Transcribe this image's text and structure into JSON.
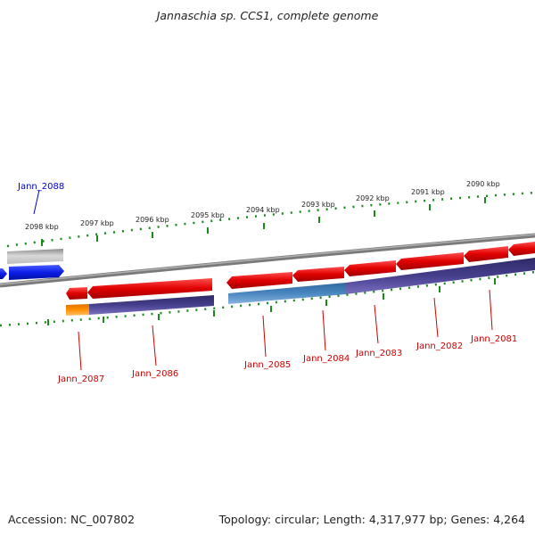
{
  "title": "Jannaschia sp. CCS1, complete genome",
  "footer": {
    "accession": "Accession: NC_007802",
    "topology": "Topology: circular; Length: 4,317,977 bp; Genes: 4,264"
  },
  "ruler_labels": [
    "2098 kbp",
    "2097 kbp",
    "2096 kbp",
    "2095 kbp",
    "2094 kbp",
    "2093 kbp",
    "2092 kbp",
    "2091 kbp",
    "2090 kbp"
  ],
  "gene_labels": [
    {
      "text": "Jann_2088",
      "color": "#0000cc"
    },
    {
      "text": "Jann_2087",
      "color": "#cc0000"
    },
    {
      "text": "Jann_2086",
      "color": "#cc0000"
    },
    {
      "text": "Jann_2085",
      "color": "#cc0000"
    },
    {
      "text": "Jann_2084",
      "color": "#cc0000"
    },
    {
      "text": "Jann_2083",
      "color": "#cc0000"
    },
    {
      "text": "Jann_2082",
      "color": "#cc0000"
    },
    {
      "text": "Jann_2081",
      "color": "#cc0000"
    }
  ],
  "colors": {
    "backbone": "#7a7a7a",
    "gene_red": "#e00000",
    "gene_blue": "#0a1ee6",
    "gene_grey": "#b4b4b4",
    "track_purple": "#3e3880",
    "track_steel": "#3f7fb8",
    "track_orange": "#ff8a00",
    "tick_green": "#1a8a1a"
  }
}
